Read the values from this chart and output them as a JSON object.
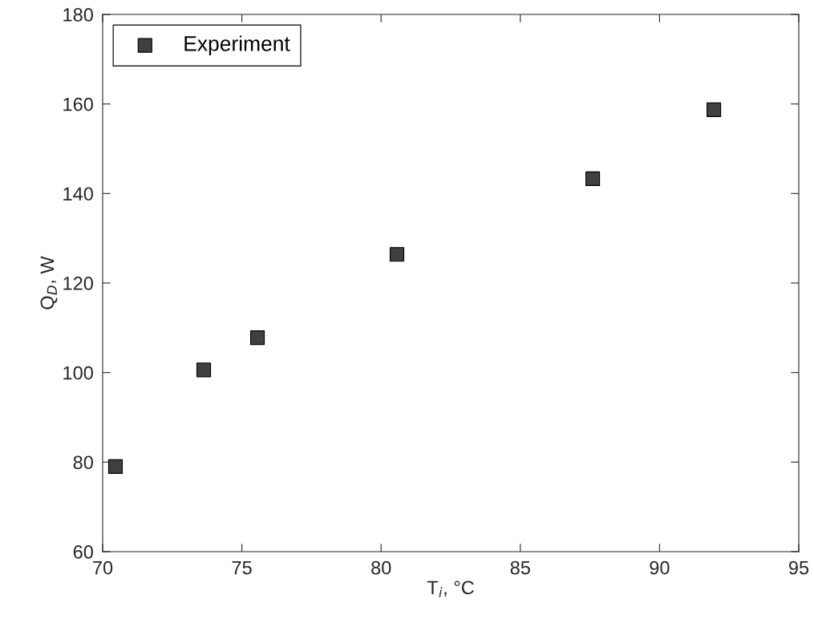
{
  "chart_data": {
    "type": "scatter",
    "xlabel": "T$_{i}$, °C",
    "ylabel": "Q$_{D}$, W",
    "xlim": [
      70,
      95
    ],
    "xticks": [
      70,
      75,
      80,
      85,
      90,
      95
    ],
    "ylim": [
      60,
      180
    ],
    "yticks": [
      60,
      80,
      100,
      120,
      140,
      160,
      180
    ],
    "series": [
      {
        "name": "Experiment",
        "color": "#404040",
        "x": [
          70.46,
          73.63,
          75.56,
          80.57,
          87.6,
          91.95
        ],
        "values": [
          79.0,
          100.6,
          107.8,
          126.4,
          143.3,
          158.7
        ]
      }
    ],
    "marker": "square",
    "legend": "top left",
    "grid": false
  }
}
